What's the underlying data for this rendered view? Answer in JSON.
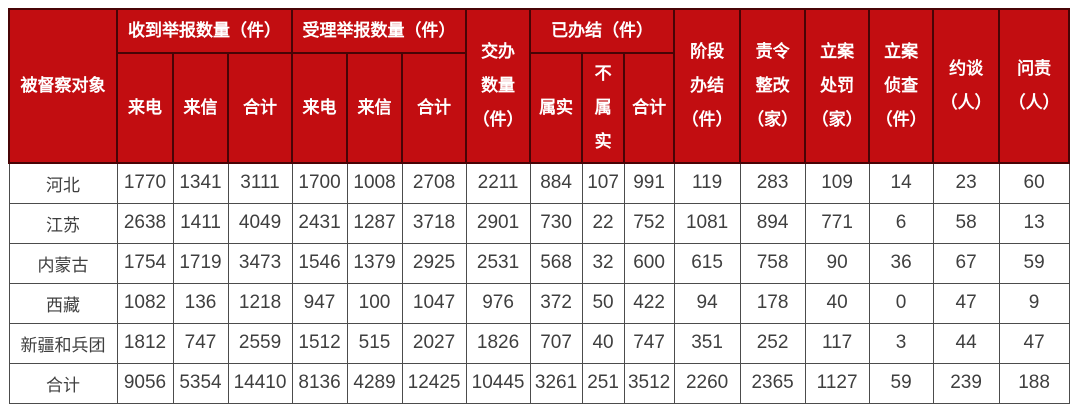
{
  "colors": {
    "header_red": "#c20d11",
    "header_divider": "#480406",
    "grid_line": "#4c4c4c",
    "header_text": "#ffffff",
    "body_text": "#3f3f3f"
  },
  "chart_data": {
    "type": "table",
    "header": {
      "corner": "被督察对象",
      "groups": {
        "received": {
          "label": "收到举报数量（件）",
          "subs": [
            "来电",
            "来信",
            "合计"
          ]
        },
        "accepted": {
          "label": "受理举报数量（件）",
          "subs": [
            "来电",
            "来信",
            "合计"
          ]
        },
        "assigned": {
          "label": "交办\n数量\n（件）"
        },
        "concluded": {
          "label": "已办结（件）",
          "subs": [
            "属实",
            "不\n属\n实",
            "合计"
          ]
        },
        "stage_concluded": {
          "label": "阶段\n办结\n（件）"
        },
        "ordered_rectification": {
          "label": "责令\n整改\n（家）"
        },
        "case_penalty": {
          "label": "立案\n处罚\n（家）"
        },
        "case_investigation": {
          "label": "立案\n侦查\n（件）"
        },
        "interviewed": {
          "label": "约谈\n（人）"
        },
        "accountability": {
          "label": "问责\n（人）"
        }
      }
    },
    "rows": [
      {
        "label": "河北",
        "values": [
          1770,
          1341,
          3111,
          1700,
          1008,
          2708,
          2211,
          884,
          107,
          991,
          119,
          283,
          109,
          14,
          23,
          60
        ]
      },
      {
        "label": "江苏",
        "values": [
          2638,
          1411,
          4049,
          2431,
          1287,
          3718,
          2901,
          730,
          22,
          752,
          1081,
          894,
          771,
          6,
          58,
          13
        ]
      },
      {
        "label": "内蒙古",
        "values": [
          1754,
          1719,
          3473,
          1546,
          1379,
          2925,
          2531,
          568,
          32,
          600,
          615,
          758,
          90,
          36,
          67,
          59
        ]
      },
      {
        "label": "西藏",
        "values": [
          1082,
          136,
          1218,
          947,
          100,
          1047,
          976,
          372,
          50,
          422,
          94,
          178,
          40,
          0,
          47,
          9
        ]
      },
      {
        "label": "新疆和兵团",
        "values": [
          1812,
          747,
          2559,
          1512,
          515,
          2027,
          1826,
          707,
          40,
          747,
          351,
          252,
          117,
          3,
          44,
          47
        ]
      },
      {
        "label": "合计",
        "values": [
          9056,
          5354,
          14410,
          8136,
          4289,
          12425,
          10445,
          3261,
          251,
          3512,
          2260,
          2365,
          1127,
          59,
          239,
          188
        ]
      }
    ]
  }
}
